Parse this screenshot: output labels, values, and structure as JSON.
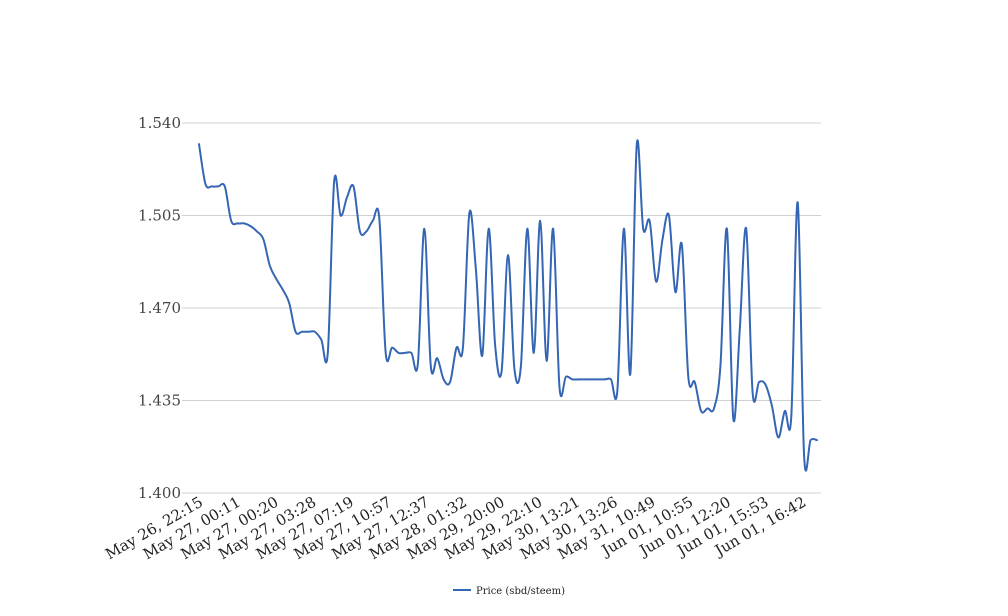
{
  "chart_data": {
    "type": "line",
    "title": "",
    "xlabel": "",
    "ylabel": "",
    "ylim": [
      1.4,
      1.54
    ],
    "y_ticks": [
      "1.400",
      "1.435",
      "1.470",
      "1.505",
      "1.540"
    ],
    "x_tick_labels": [
      "May 26, 22:15",
      "May 27, 00:11",
      "May 27, 00:20",
      "May 27, 03:28",
      "May 27, 07:19",
      "May 27, 10:57",
      "May 27, 12:37",
      "May 28, 01:32",
      "May 29, 20:00",
      "May 29, 22:10",
      "May 30, 13:21",
      "May 30, 13:26",
      "May 31, 10:49",
      "Jun 01, 10:55",
      "Jun 01, 12:20",
      "Jun 01, 15:53",
      "Jun 01, 16:42"
    ],
    "grid": true,
    "legend_position": "bottom",
    "series": [
      {
        "name": "Price (sbd/steem)",
        "color": "#3566b4",
        "values": [
          1.532,
          1.517,
          1.516,
          1.516,
          1.516,
          1.503,
          1.502,
          1.502,
          1.501,
          1.499,
          1.496,
          1.486,
          1.481,
          1.477,
          1.472,
          1.461,
          1.461,
          1.461,
          1.461,
          1.458,
          1.453,
          1.518,
          1.505,
          1.512,
          1.516,
          1.499,
          1.499,
          1.503,
          1.504,
          1.453,
          1.455,
          1.453,
          1.453,
          1.453,
          1.449,
          1.5,
          1.448,
          1.451,
          1.443,
          1.442,
          1.455,
          1.455,
          1.506,
          1.485,
          1.452,
          1.5,
          1.456,
          1.446,
          1.49,
          1.447,
          1.448,
          1.5,
          1.453,
          1.503,
          1.45,
          1.5,
          1.44,
          1.444,
          1.443,
          1.443,
          1.443,
          1.443,
          1.443,
          1.443,
          1.443,
          1.439,
          1.5,
          1.445,
          1.532,
          1.5,
          1.503,
          1.48,
          1.496,
          1.505,
          1.476,
          1.494,
          1.444,
          1.442,
          1.431,
          1.432,
          1.432,
          1.448,
          1.5,
          1.428,
          1.462,
          1.5,
          1.438,
          1.442,
          1.441,
          1.433,
          1.421,
          1.431,
          1.429,
          1.51,
          1.414,
          1.42,
          1.42
        ]
      }
    ]
  }
}
